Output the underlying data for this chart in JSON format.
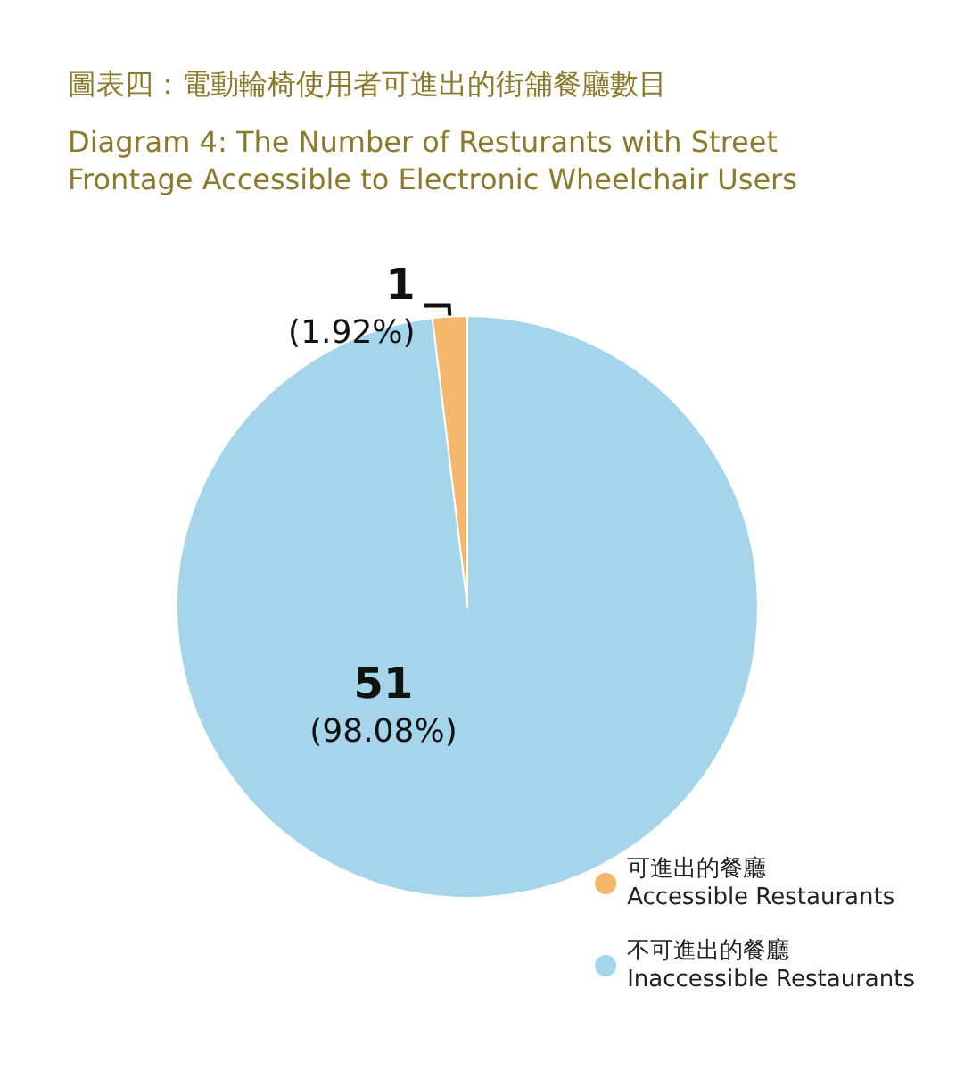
{
  "chart_data": {
    "type": "pie",
    "title": "圖表四：電動輪椅使用者可進出的街舖餐廳數目",
    "subtitle": "Diagram 4: The Number of Resturants with Street Frontage Accessible to Electronic Wheelchair Users",
    "categories": [
      "可進出的餐廳\nAccessible Restaurants",
      "不可進出的餐廳\nInaccessible Restaurants"
    ],
    "values": [
      1,
      51
    ],
    "colors": [
      "#f5b76c",
      "#a5d5ea"
    ],
    "value_labels": [
      "1\n(1.92%)",
      "51\n(98.08%)"
    ],
    "legend": "bottom right"
  }
}
